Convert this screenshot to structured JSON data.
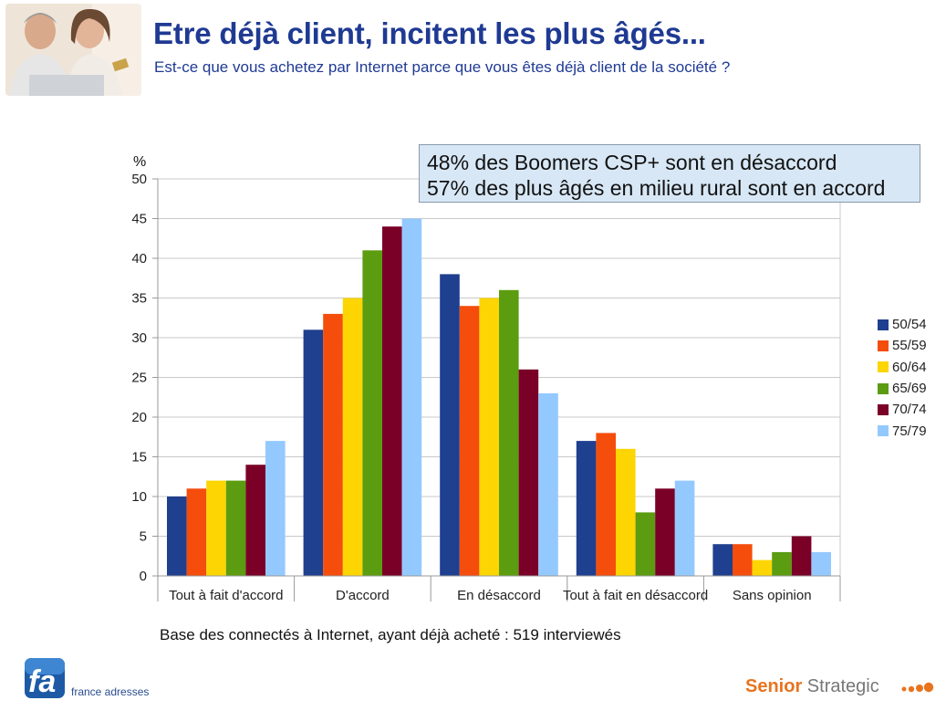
{
  "header": {
    "title": "Etre déjà client, incitent les plus âgés...",
    "subtitle": "Est-ce que vous achetez par Internet parce que vous êtes déjà client de la société  ?"
  },
  "callout": {
    "line1": "48% des Boomers CSP+ sont en désaccord",
    "line2": "57% des plus âgés en milieu rural sont en accord"
  },
  "footer": {
    "base_note": "Base des connectés à Internet, ayant déjà acheté : 519 interviewés",
    "left_logo_text": "france adresses",
    "brand_part1": "Senior",
    "brand_part2": " Strategic"
  },
  "chart_data": {
    "type": "bar",
    "ylabel": "%",
    "ylim": [
      0,
      50
    ],
    "ytick_step": 5,
    "grid": true,
    "legend_position": "right",
    "categories": [
      "Tout à fait d'accord",
      "D'accord",
      "En désaccord",
      "Tout à fait en désaccord",
      "Sans opinion"
    ],
    "series": [
      {
        "name": "50/54",
        "color": "#1f3f8f",
        "values": [
          10,
          31,
          38,
          17,
          4
        ]
      },
      {
        "name": "55/59",
        "color": "#f54d0c",
        "values": [
          11,
          33,
          34,
          18,
          4
        ]
      },
      {
        "name": "60/64",
        "color": "#fcd502",
        "values": [
          12,
          35,
          35,
          16,
          2
        ]
      },
      {
        "name": "65/69",
        "color": "#5b9c11",
        "values": [
          12,
          41,
          36,
          8,
          3
        ]
      },
      {
        "name": "70/74",
        "color": "#7a0028",
        "values": [
          14,
          44,
          26,
          11,
          5
        ]
      },
      {
        "name": "75/79",
        "color": "#94c9ff",
        "values": [
          17,
          45,
          23,
          12,
          3
        ]
      }
    ]
  }
}
